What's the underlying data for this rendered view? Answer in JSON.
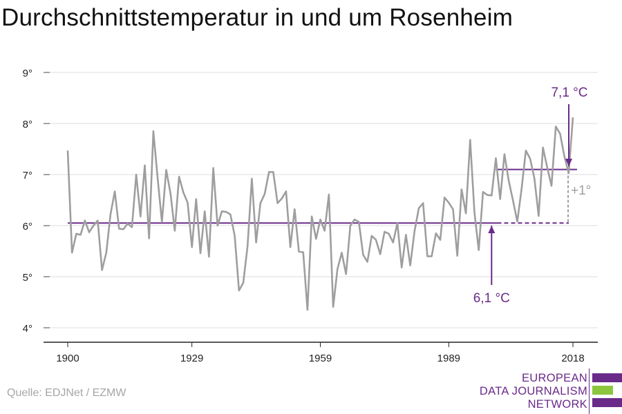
{
  "title": "Durchschnittstemperatur in und um Rosenheim",
  "source": "Quelle: EDJNet / EZMW",
  "logo": {
    "lines": [
      "EUROPEAN",
      "DATA JOURNALISM",
      "NETWORK"
    ],
    "colors": {
      "purple": "#6a2a8a",
      "green": "#8cc63f"
    }
  },
  "colors": {
    "series": "#9e9e9e",
    "accent": "#6a2a8a",
    "grid": "#dddddd",
    "delta": "#9e9e9e"
  },
  "chart_data": {
    "type": "line",
    "title": "Durchschnittstemperatur in und um Rosenheim",
    "xlabel": "",
    "ylabel": "",
    "xlim": [
      1900,
      2018
    ],
    "ylim": [
      4,
      9
    ],
    "x_ticks": [
      1900,
      1929,
      1959,
      1989,
      2018
    ],
    "y_ticks": [
      4,
      5,
      6,
      7,
      8,
      9
    ],
    "y_tick_labels": [
      "4°",
      "5°",
      "6°",
      "7°",
      "8°",
      "9°"
    ],
    "grid": true,
    "series": [
      {
        "x_start": 1900,
        "values": [
          7.47,
          5.47,
          5.84,
          5.82,
          6.1,
          5.87,
          6.0,
          6.1,
          5.13,
          5.47,
          6.22,
          6.67,
          5.94,
          5.93,
          6.04,
          5.97,
          7.0,
          6.18,
          7.18,
          5.75,
          7.85,
          6.93,
          6.07,
          7.09,
          6.63,
          5.9,
          6.96,
          6.65,
          6.45,
          5.58,
          6.52,
          5.46,
          6.28,
          5.39,
          7.13,
          6.0,
          6.28,
          6.27,
          6.22,
          5.8,
          4.73,
          4.88,
          5.6,
          6.92,
          5.67,
          6.44,
          6.62,
          7.05,
          7.05,
          6.44,
          6.53,
          6.67,
          5.58,
          6.32,
          5.49,
          5.48,
          4.35,
          6.18,
          5.74,
          6.12,
          5.9,
          6.61,
          4.41,
          5.15,
          5.47,
          5.05,
          6.0,
          6.12,
          6.07,
          5.43,
          5.29,
          5.8,
          5.72,
          5.44,
          5.88,
          5.84,
          5.67,
          6.05,
          5.18,
          5.82,
          5.22,
          5.89,
          6.34,
          6.44,
          5.4,
          5.4,
          5.85,
          5.72,
          6.55,
          6.45,
          6.32,
          5.41,
          6.71,
          6.24,
          7.68,
          6.26,
          5.52,
          6.66,
          6.6,
          6.59,
          7.32,
          6.52,
          7.4,
          6.88,
          6.49,
          6.08,
          6.72,
          7.47,
          7.31,
          6.93,
          6.19,
          7.53,
          7.14,
          6.78,
          7.94,
          7.8,
          7.36,
          7.03,
          8.12
        ]
      }
    ],
    "reference_lines": [
      {
        "label": "6,1 °C",
        "value": 6.05,
        "x_from": 1900,
        "x_to": 2018,
        "solid_to": 2000
      },
      {
        "label": "7,1 °C",
        "value": 7.1,
        "x_from": 2000,
        "x_to": 2018
      }
    ],
    "difference_label": "+1°"
  }
}
